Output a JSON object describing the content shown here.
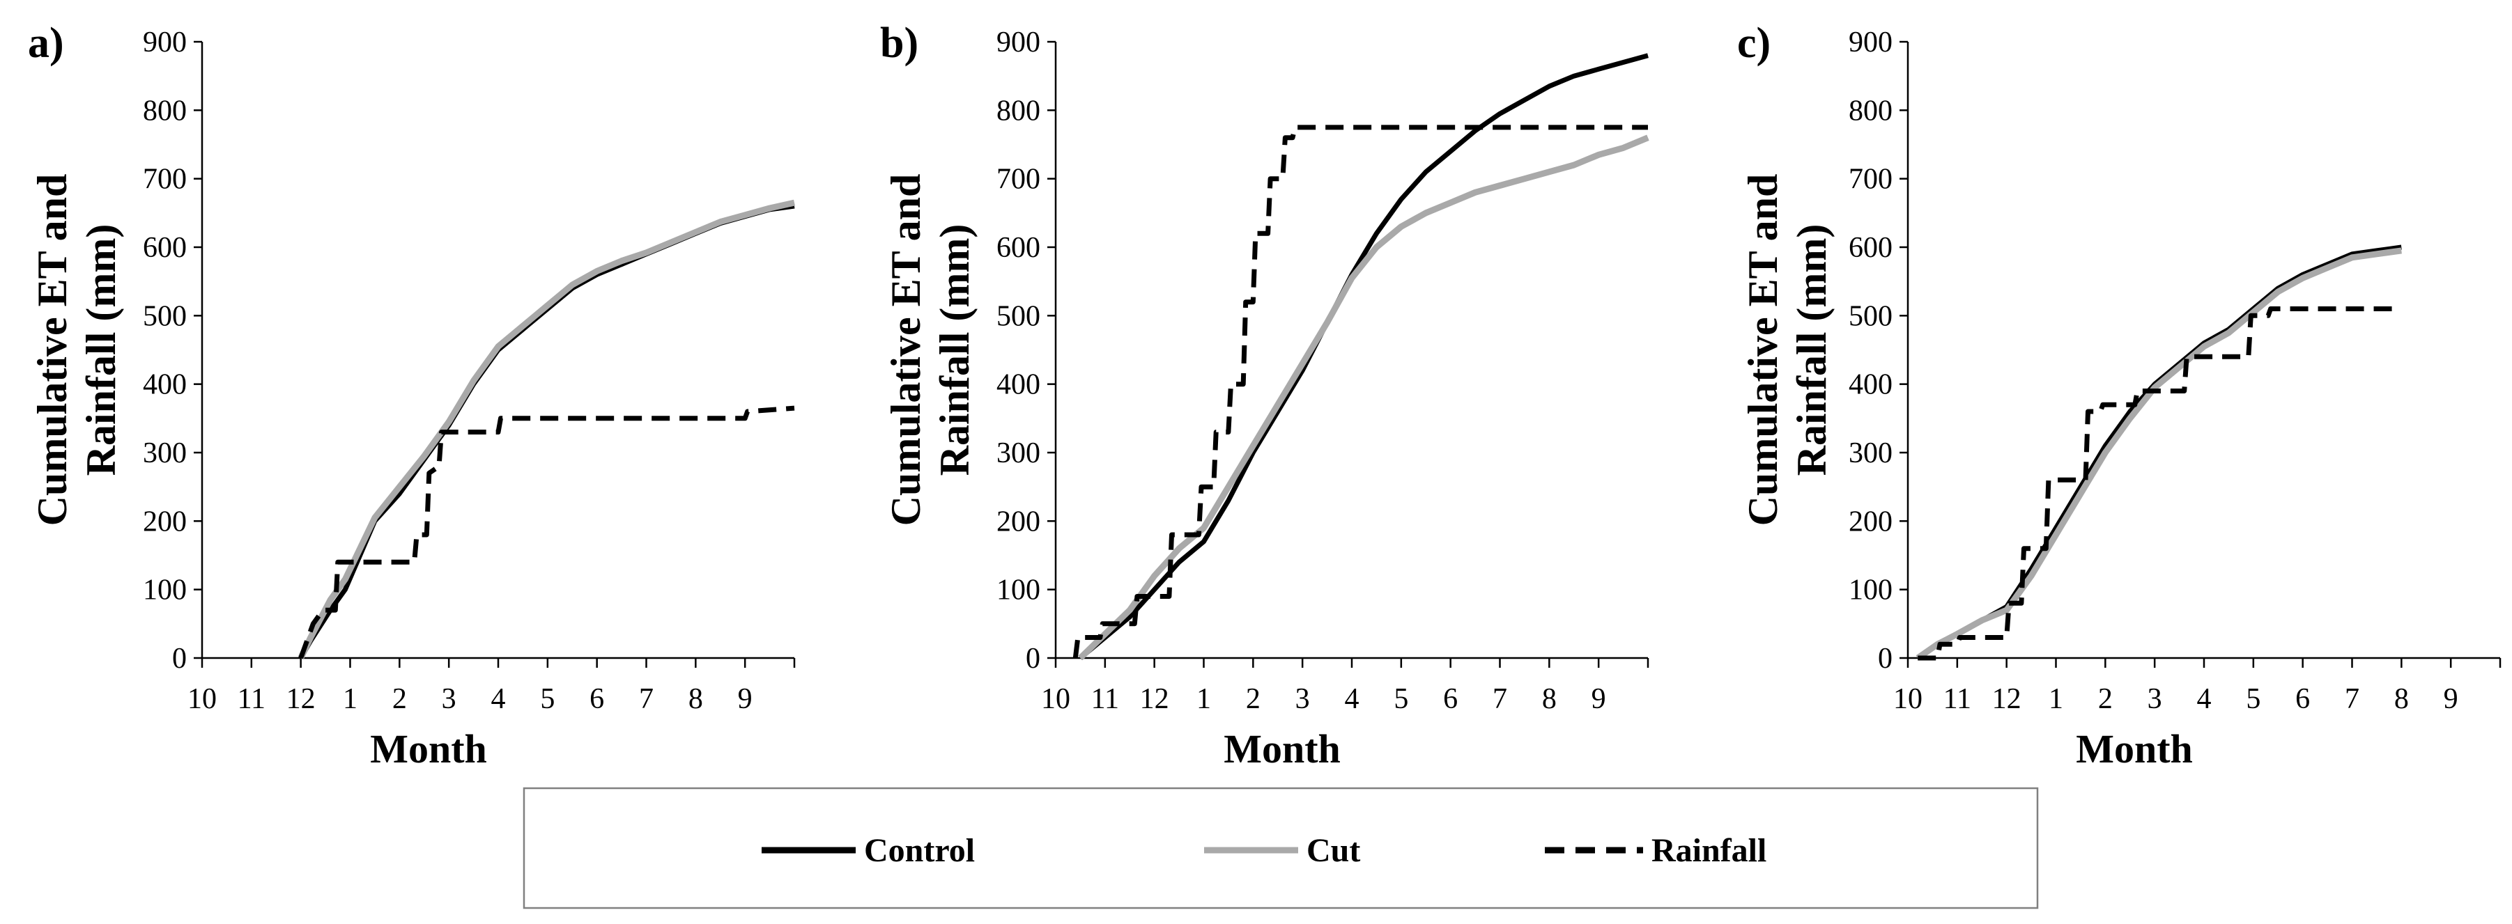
{
  "legend": [
    {
      "name": "Control",
      "color": "#000000",
      "dash": false
    },
    {
      "name": "Cut",
      "color": "#a9a9a9",
      "dash": false
    },
    {
      "name": "Rainfall",
      "color": "#000000",
      "dash": true
    }
  ],
  "chart_data": [
    {
      "type": "line",
      "panel": "a)",
      "xlabel": "Month",
      "ylabel_line1": "Cumulative ET and",
      "ylabel_line2": "Rainfall (mm)",
      "ylim": [
        0,
        900
      ],
      "yticks": [
        "0",
        "100",
        "200",
        "300",
        "400",
        "500",
        "600",
        "700",
        "800",
        "900"
      ],
      "xticks": [
        "10",
        "11",
        "12",
        "1",
        "2",
        "3",
        "4",
        "5",
        "6",
        "7",
        "8",
        "9"
      ],
      "xlim": [
        0,
        12
      ],
      "series": [
        {
          "name": "Control",
          "x": [
            2.0,
            2.2,
            2.6,
            2.9,
            3.2,
            3.5,
            4.0,
            4.5,
            5.0,
            5.5,
            6.0,
            6.5,
            7.0,
            7.5,
            8.0,
            8.5,
            9.0,
            9.5,
            10.0,
            10.5,
            11.0,
            11.5,
            12.0
          ],
          "y": [
            0,
            25,
            70,
            100,
            150,
            200,
            240,
            290,
            340,
            400,
            450,
            480,
            510,
            540,
            560,
            575,
            590,
            605,
            620,
            635,
            645,
            655,
            660
          ]
        },
        {
          "name": "Cut",
          "x": [
            2.0,
            2.2,
            2.6,
            2.9,
            3.2,
            3.5,
            4.0,
            4.5,
            5.0,
            5.5,
            6.0,
            6.5,
            7.0,
            7.5,
            8.0,
            8.5,
            9.0,
            9.5,
            10.0,
            10.5,
            11.0,
            11.5,
            12.0
          ],
          "y": [
            0,
            30,
            85,
            115,
            160,
            205,
            250,
            295,
            345,
            405,
            455,
            485,
            515,
            545,
            565,
            580,
            592,
            607,
            622,
            637,
            647,
            657,
            665
          ]
        },
        {
          "name": "Rainfall",
          "x": [
            2.0,
            2.15,
            2.25,
            2.45,
            2.7,
            2.75,
            3.5,
            3.55,
            4.3,
            4.35,
            4.55,
            4.6,
            4.8,
            4.85,
            6.0,
            6.05,
            11.0,
            11.05,
            12.0
          ],
          "y": [
            0,
            30,
            50,
            70,
            70,
            140,
            140,
            140,
            140,
            180,
            180,
            270,
            280,
            330,
            330,
            350,
            350,
            360,
            365
          ]
        }
      ]
    },
    {
      "type": "line",
      "panel": "b)",
      "xlabel": "Month",
      "ylabel_line1": "Cumulative ET and",
      "ylabel_line2": "Rainfall (mm)",
      "ylim": [
        0,
        900
      ],
      "yticks": [
        "0",
        "100",
        "200",
        "300",
        "400",
        "500",
        "600",
        "700",
        "800",
        "900"
      ],
      "xticks": [
        "10",
        "11",
        "12",
        "1",
        "2",
        "3",
        "4",
        "5",
        "6",
        "7",
        "8",
        "9"
      ],
      "xlim": [
        0,
        12
      ],
      "series": [
        {
          "name": "Control",
          "x": [
            0.5,
            1.0,
            1.5,
            2.0,
            2.5,
            3.0,
            3.5,
            4.0,
            4.5,
            5.0,
            5.5,
            6.0,
            6.5,
            7.0,
            7.5,
            8.0,
            8.5,
            9.0,
            9.5,
            10.0,
            10.5,
            11.0,
            11.5,
            12.0
          ],
          "y": [
            0,
            30,
            60,
            100,
            140,
            170,
            230,
            300,
            360,
            420,
            490,
            560,
            620,
            670,
            710,
            740,
            770,
            795,
            815,
            835,
            850,
            860,
            870,
            880
          ]
        },
        {
          "name": "Cut",
          "x": [
            0.5,
            1.0,
            1.5,
            2.0,
            2.5,
            3.0,
            3.5,
            4.0,
            4.5,
            5.0,
            5.5,
            6.0,
            6.5,
            7.0,
            7.5,
            8.0,
            8.5,
            9.0,
            9.5,
            10.0,
            10.5,
            11.0,
            11.5,
            12.0
          ],
          "y": [
            0,
            35,
            70,
            120,
            160,
            190,
            250,
            310,
            370,
            430,
            490,
            555,
            600,
            630,
            650,
            665,
            680,
            690,
            700,
            710,
            720,
            735,
            745,
            760
          ]
        },
        {
          "name": "Rainfall",
          "x": [
            0.4,
            0.45,
            0.9,
            0.95,
            1.6,
            1.65,
            2.3,
            2.35,
            2.9,
            2.95,
            3.2,
            3.25,
            3.5,
            3.55,
            3.8,
            3.85,
            4.0,
            4.05,
            4.3,
            4.35,
            4.6,
            4.65,
            4.8,
            4.85,
            12.0
          ],
          "y": [
            0,
            30,
            30,
            50,
            50,
            90,
            90,
            180,
            180,
            250,
            250,
            330,
            330,
            400,
            400,
            520,
            520,
            620,
            620,
            700,
            700,
            760,
            760,
            775,
            775
          ]
        }
      ]
    },
    {
      "type": "line",
      "panel": "c)",
      "xlabel": "Month",
      "ylabel_line1": "Cumulative ET and",
      "ylabel_line2": "Rainfall (mm)",
      "ylim": [
        0,
        900
      ],
      "yticks": [
        "0",
        "100",
        "200",
        "300",
        "400",
        "500",
        "600",
        "700",
        "800",
        "900"
      ],
      "xticks": [
        "10",
        "11",
        "12",
        "1",
        "2",
        "3",
        "4",
        "5",
        "6",
        "7",
        "8",
        "9"
      ],
      "xlim": [
        0,
        12
      ],
      "series": [
        {
          "name": "Control",
          "x": [
            0.2,
            0.6,
            1.0,
            1.5,
            2.0,
            2.5,
            3.0,
            3.5,
            4.0,
            4.5,
            5.0,
            5.5,
            6.0,
            6.5,
            7.0,
            7.5,
            8.0,
            8.5,
            9.0,
            9.5,
            10.0
          ],
          "y": [
            0,
            20,
            35,
            55,
            75,
            130,
            190,
            250,
            310,
            360,
            400,
            430,
            460,
            480,
            510,
            540,
            560,
            575,
            590,
            595,
            600
          ]
        },
        {
          "name": "Cut",
          "x": [
            0.2,
            0.6,
            1.0,
            1.5,
            2.0,
            2.5,
            3.0,
            3.5,
            4.0,
            4.5,
            5.0,
            5.5,
            6.0,
            6.5,
            7.0,
            7.5,
            8.0,
            8.5,
            9.0,
            9.5,
            10.0
          ],
          "y": [
            0,
            20,
            35,
            55,
            70,
            120,
            180,
            240,
            300,
            350,
            395,
            425,
            455,
            475,
            505,
            535,
            555,
            570,
            585,
            590,
            595
          ]
        },
        {
          "name": "Rainfall",
          "x": [
            0.2,
            0.6,
            0.65,
            1.0,
            1.05,
            2.0,
            2.05,
            2.3,
            2.35,
            2.8,
            2.85,
            3.6,
            3.65,
            3.9,
            3.95,
            4.6,
            4.65,
            5.6,
            5.65,
            6.9,
            6.95,
            7.3,
            7.35,
            10.0
          ],
          "y": [
            0,
            0,
            20,
            20,
            30,
            30,
            80,
            80,
            160,
            160,
            260,
            260,
            360,
            360,
            370,
            370,
            390,
            390,
            440,
            440,
            500,
            500,
            510,
            510
          ]
        }
      ]
    }
  ]
}
